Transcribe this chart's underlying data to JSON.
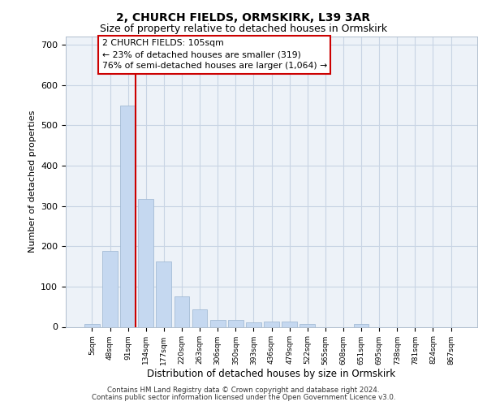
{
  "title1": "2, CHURCH FIELDS, ORMSKIRK, L39 3AR",
  "title2": "Size of property relative to detached houses in Ormskirk",
  "xlabel": "Distribution of detached houses by size in Ormskirk",
  "ylabel": "Number of detached properties",
  "bar_labels": [
    "5sqm",
    "48sqm",
    "91sqm",
    "134sqm",
    "177sqm",
    "220sqm",
    "263sqm",
    "306sqm",
    "350sqm",
    "393sqm",
    "436sqm",
    "479sqm",
    "522sqm",
    "565sqm",
    "608sqm",
    "651sqm",
    "695sqm",
    "738sqm",
    "781sqm",
    "824sqm",
    "867sqm"
  ],
  "bar_values": [
    8,
    188,
    548,
    317,
    163,
    75,
    44,
    18,
    18,
    11,
    13,
    13,
    8,
    0,
    0,
    7,
    0,
    0,
    0,
    0,
    0
  ],
  "bar_color": "#c5d8f0",
  "bar_edge_color": "#9ab4d0",
  "grid_color": "#c8d4e4",
  "background_color": "#edf2f8",
  "annotation_text": "2 CHURCH FIELDS: 105sqm\n← 23% of detached houses are smaller (319)\n76% of semi-detached houses are larger (1,064) →",
  "ylim": [
    0,
    720
  ],
  "yticks": [
    0,
    100,
    200,
    300,
    400,
    500,
    600,
    700
  ],
  "red_line_x": 2.43,
  "footer1": "Contains HM Land Registry data © Crown copyright and database right 2024.",
  "footer2": "Contains public sector information licensed under the Open Government Licence v3.0."
}
